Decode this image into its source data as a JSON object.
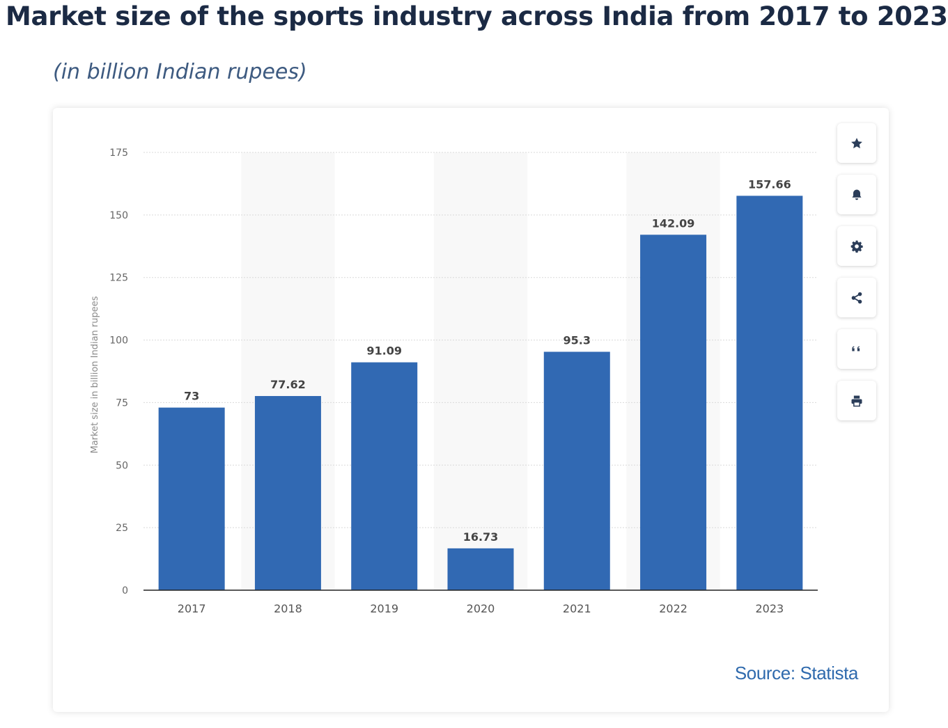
{
  "header": {
    "title": "Market size of the sports industry across India from 2017 to 2023",
    "subtitle": "(in billion Indian rupees)"
  },
  "toolbar": {
    "buttons": [
      {
        "name": "favorite",
        "icon": "star-icon"
      },
      {
        "name": "notification",
        "icon": "bell-icon"
      },
      {
        "name": "settings",
        "icon": "gear-icon"
      },
      {
        "name": "share",
        "icon": "share-icon"
      },
      {
        "name": "cite",
        "icon": "quote-icon"
      },
      {
        "name": "print",
        "icon": "printer-icon"
      }
    ]
  },
  "footer": {
    "source": "Source: Statista"
  },
  "colors": {
    "bar": "#3169b3",
    "title": "#1b2a44",
    "subtitle": "#3d5a80",
    "source": "#2f6aad",
    "icon": "#2b3d59"
  },
  "chart_data": {
    "type": "bar",
    "categories": [
      "2017",
      "2018",
      "2019",
      "2020",
      "2021",
      "2022",
      "2023"
    ],
    "values": [
      73,
      77.62,
      91.09,
      16.73,
      95.3,
      142.09,
      157.66
    ],
    "value_labels": [
      "73",
      "77.62",
      "91.09",
      "16.73",
      "95.3",
      "142.09",
      "157.66"
    ],
    "ylabel": "Market size in billion Indian rupees",
    "ylim": [
      0,
      175
    ],
    "yticks": [
      0,
      25,
      50,
      75,
      100,
      125,
      150,
      175
    ],
    "grid": true,
    "shaded_columns": [
      "2018",
      "2020",
      "2022"
    ]
  }
}
